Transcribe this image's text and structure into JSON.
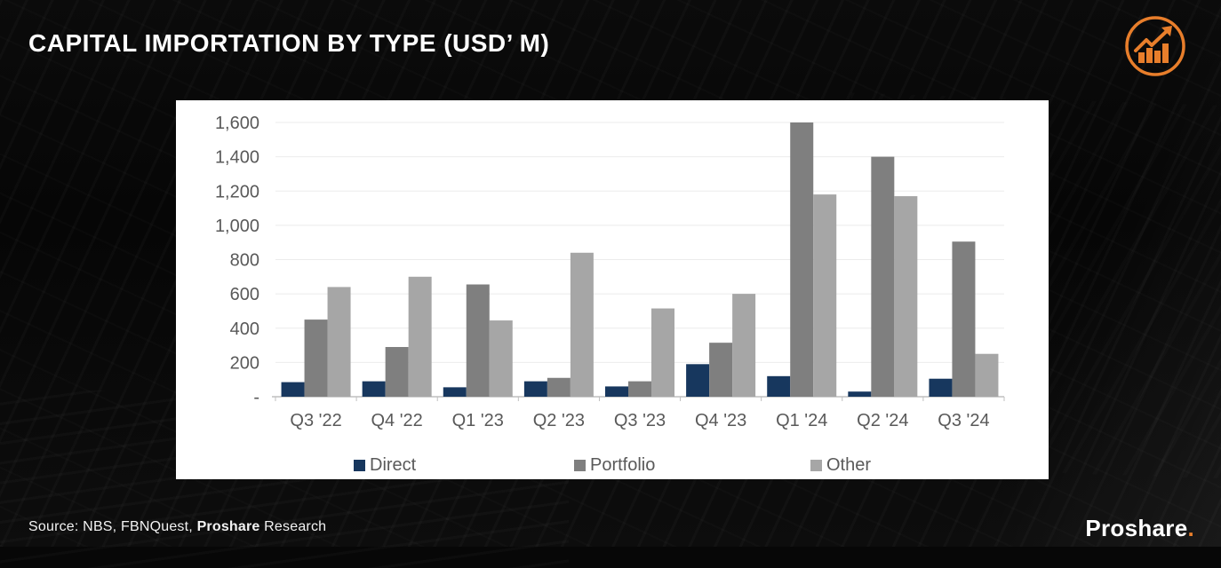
{
  "header": {
    "title": "CAPITAL IMPORTATION BY TYPE (USD’ M)",
    "accent_color": "#E87E2B",
    "growth_icon": "growth-chart-icon"
  },
  "chart_data": {
    "type": "bar",
    "title": "CAPITAL IMPORTATION BY TYPE (USD' M)",
    "categories": [
      "Q3 '22",
      "Q4 '22",
      "Q1 '23",
      "Q2 '23",
      "Q3 '23",
      "Q4 '23",
      "Q1 '24",
      "Q2 '24",
      "Q3 '24"
    ],
    "series": [
      {
        "name": "Direct",
        "color": "#17375E",
        "values": [
          85,
          90,
          55,
          90,
          60,
          190,
          120,
          30,
          105
        ]
      },
      {
        "name": "Portfolio",
        "color": "#7F7F7F",
        "values": [
          450,
          290,
          655,
          110,
          90,
          315,
          1600,
          1400,
          905
        ]
      },
      {
        "name": "Other",
        "color": "#A6A6A6",
        "values": [
          640,
          700,
          445,
          840,
          515,
          600,
          1180,
          1170,
          250
        ]
      }
    ],
    "xlabel": "",
    "ylabel": "",
    "ylim": [
      0,
      1600
    ],
    "ytick_step": 200,
    "zero_tick_label": "-",
    "grid": true,
    "legend_position": "bottom",
    "axis_text_color": "#595959",
    "gridline_color": "#ebebeb",
    "axis_line_color": "#bfbfbf",
    "panel_background": "#ffffff"
  },
  "footer": {
    "source_prefix": "Source: NBS, FBNQuest, ",
    "source_bold": "Proshare",
    "source_suffix": " Research",
    "brand": "Proshare",
    "brand_dot": "."
  }
}
